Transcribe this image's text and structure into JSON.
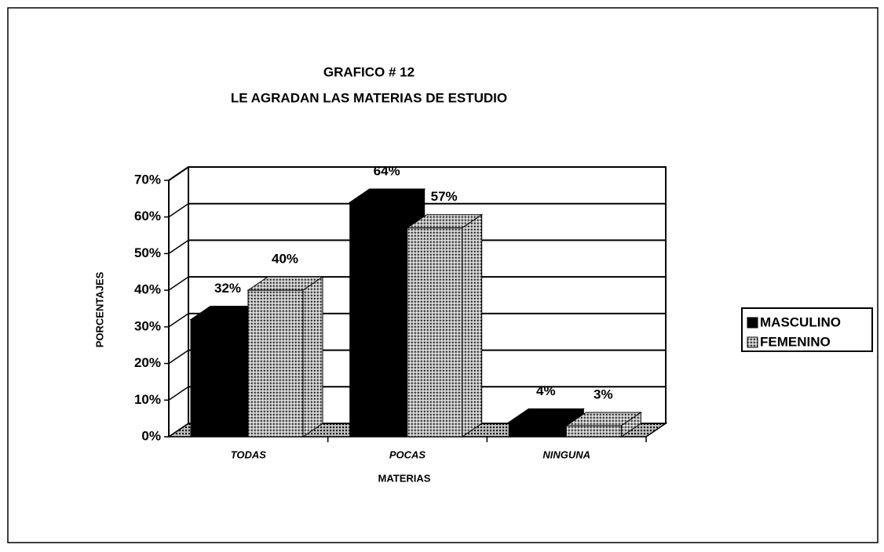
{
  "chart_data": {
    "type": "bar3d",
    "title": "GRAFICO # 12",
    "subtitle": "LE AGRADAN LAS MATERIAS DE ESTUDIO",
    "xlabel": "MATERIAS",
    "ylabel": "PORCENTAJES",
    "categories": [
      "TODAS",
      "POCAS",
      "NINGUNA"
    ],
    "series": [
      {
        "name": "MASCULINO",
        "color": "#000000",
        "values": [
          32,
          64,
          4
        ],
        "value_labels": [
          "32%",
          "64%",
          "4%"
        ]
      },
      {
        "name": "FEMENINO",
        "color": "#b4b4b4",
        "values": [
          40,
          57,
          3
        ],
        "value_labels": [
          "40%",
          "57%",
          "3%"
        ]
      }
    ],
    "ylim": [
      0,
      70
    ],
    "yticks": [
      {
        "value": 0,
        "label": "0%"
      },
      {
        "value": 10,
        "label": "10%"
      },
      {
        "value": 20,
        "label": "20%"
      },
      {
        "value": 30,
        "label": "30%"
      },
      {
        "value": 40,
        "label": "40%"
      },
      {
        "value": 50,
        "label": "50%"
      },
      {
        "value": 60,
        "label": "60%"
      },
      {
        "value": 70,
        "label": "70%"
      }
    ],
    "grid": true,
    "legend": "right"
  }
}
